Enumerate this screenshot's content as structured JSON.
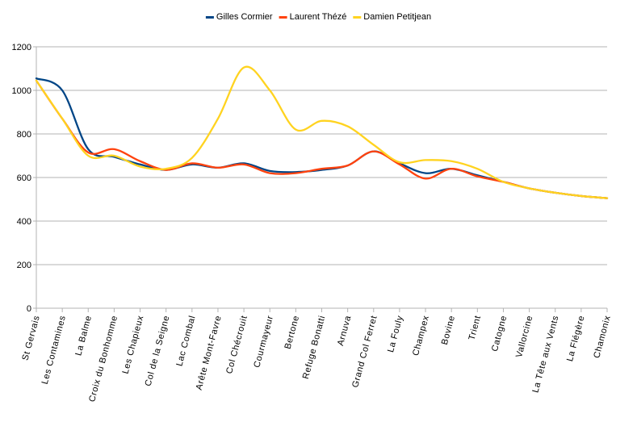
{
  "chart_data": {
    "type": "line",
    "title": "",
    "xlabel": "",
    "ylabel": "",
    "ylim": [
      0,
      1200
    ],
    "yticks": [
      0,
      200,
      400,
      600,
      800,
      1000,
      1200
    ],
    "grid": "horizontal",
    "legend_position": "top",
    "categories": [
      "St Gervais",
      "Les Contamines",
      "La Balme",
      "Croix du Bonhomme",
      "Les Chapieux",
      "Col de la Seigne",
      "Lac Combal",
      "Arête Mont-Favre",
      "Col Chécrouit",
      "Courmayeur",
      "Bertone",
      "Refuge Bonatti",
      "Arnuva",
      "Grand Col Ferret",
      "La Fouly",
      "Champex",
      "Bovine",
      "Trient",
      "Catogne",
      "Vallorcine",
      "La Tête aux Vents",
      "La Flégère",
      "Chamonix"
    ],
    "series": [
      {
        "name": "Gilles Cormier",
        "color": "#004586",
        "values": [
          1055,
          1000,
          730,
          695,
          660,
          635,
          660,
          645,
          665,
          630,
          625,
          635,
          655,
          720,
          665,
          620,
          640,
          610,
          580,
          550,
          530,
          515,
          505
        ]
      },
      {
        "name": "Laurent Thézé",
        "color": "#ff420e",
        "values": [
          1045,
          870,
          715,
          730,
          675,
          635,
          665,
          645,
          660,
          620,
          620,
          640,
          655,
          720,
          660,
          595,
          640,
          605,
          580,
          550,
          530,
          515,
          505
        ]
      },
      {
        "name": "Damien Petitjean",
        "color": "#ffd320",
        "values": [
          1045,
          870,
          700,
          700,
          650,
          640,
          690,
          870,
          1105,
          1000,
          820,
          860,
          835,
          750,
          670,
          680,
          675,
          640,
          580,
          550,
          530,
          515,
          505
        ]
      }
    ]
  }
}
